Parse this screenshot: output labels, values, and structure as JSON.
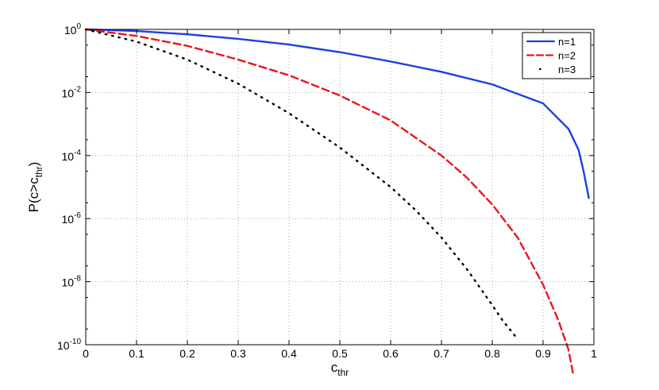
{
  "chart_data": {
    "type": "line",
    "xlabel": "c",
    "xlabel_sub": "thr",
    "ylabel_prefix": "P(c>c",
    "ylabel_sub": "thr",
    "ylabel_suffix": ")",
    "xlim": [
      0,
      1
    ],
    "ylim": [
      1e-10,
      1
    ],
    "yscale": "log",
    "grid": true,
    "legend_position": "top-right",
    "x_ticks": [
      0,
      0.1,
      0.2,
      0.3,
      0.4,
      0.5,
      0.6,
      0.7,
      0.8,
      0.9,
      1
    ],
    "x_tick_labels": [
      "0",
      "0.1",
      "0.2",
      "0.3",
      "0.4",
      "0.5",
      "0.6",
      "0.7",
      "0.8",
      "0.9",
      "1"
    ],
    "y_ticks": [
      {
        "value": 1.0,
        "base": "10",
        "exp": "0"
      },
      {
        "value": 0.01,
        "base": "10",
        "exp": "-2"
      },
      {
        "value": 0.0001,
        "base": "10",
        "exp": "-4"
      },
      {
        "value": 1e-06,
        "base": "10",
        "exp": "-6"
      },
      {
        "value": 1e-08,
        "base": "10",
        "exp": "-8"
      },
      {
        "value": 1e-10,
        "base": "10",
        "exp": "-10"
      }
    ],
    "series": [
      {
        "name": "n=1",
        "color": "#1f3fe0",
        "style": "solid",
        "x": [
          0,
          0.1,
          0.2,
          0.3,
          0.4,
          0.5,
          0.6,
          0.7,
          0.8,
          0.9,
          0.95,
          0.97,
          0.98,
          0.99
        ],
        "y": [
          1.0,
          0.89,
          0.7,
          0.5,
          0.33,
          0.19,
          0.096,
          0.045,
          0.018,
          0.0045,
          0.0007,
          0.00015,
          3e-05,
          4.5e-06
        ]
      },
      {
        "name": "n=2",
        "color": "#e8171f",
        "style": "dashed",
        "x": [
          0,
          0.1,
          0.2,
          0.3,
          0.4,
          0.5,
          0.6,
          0.7,
          0.75,
          0.8,
          0.85,
          0.9,
          0.93,
          0.95,
          0.96
        ],
        "y": [
          1.0,
          0.62,
          0.3,
          0.11,
          0.035,
          0.008,
          0.0013,
          0.0001,
          2e-05,
          2.8e-06,
          2.5e-07,
          8e-09,
          6e-10,
          7e-11,
          1e-11
        ]
      },
      {
        "name": "n=3",
        "color": "#000000",
        "style": "dotted",
        "x": [
          0,
          0.1,
          0.2,
          0.3,
          0.4,
          0.5,
          0.6,
          0.65,
          0.7,
          0.75,
          0.8,
          0.82,
          0.85
        ],
        "y": [
          1.0,
          0.41,
          0.11,
          0.019,
          0.0022,
          0.00018,
          1e-05,
          1.8e-06,
          2.5e-07,
          2.5e-08,
          1.8e-09,
          6e-10,
          1.5e-10
        ]
      }
    ]
  }
}
